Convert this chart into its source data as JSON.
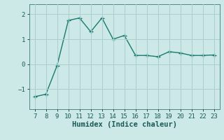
{
  "x": [
    7,
    8,
    9,
    10,
    11,
    12,
    13,
    14,
    15,
    16,
    17,
    18,
    19,
    20,
    21,
    22,
    23
  ],
  "y": [
    -1.3,
    -1.2,
    -0.05,
    1.75,
    1.85,
    1.3,
    1.85,
    1.0,
    1.15,
    0.35,
    0.35,
    0.3,
    0.5,
    0.45,
    0.35,
    0.35,
    0.37
  ],
  "line_color": "#1a7a6e",
  "marker": "+",
  "marker_size": 4,
  "marker_linewidth": 1.0,
  "linewidth": 1.0,
  "background_color": "#cce9e7",
  "grid_color": "#aacfcd",
  "xlabel": "Humidex (Indice chaleur)",
  "xlim": [
    6.5,
    23.5
  ],
  "ylim": [
    -1.8,
    2.4
  ],
  "xticks": [
    7,
    8,
    9,
    10,
    11,
    12,
    13,
    14,
    15,
    16,
    17,
    18,
    19,
    20,
    21,
    22,
    23
  ],
  "yticks": [
    -1,
    0,
    1,
    2
  ],
  "tick_fontsize": 6.5,
  "xlabel_fontsize": 7.5
}
